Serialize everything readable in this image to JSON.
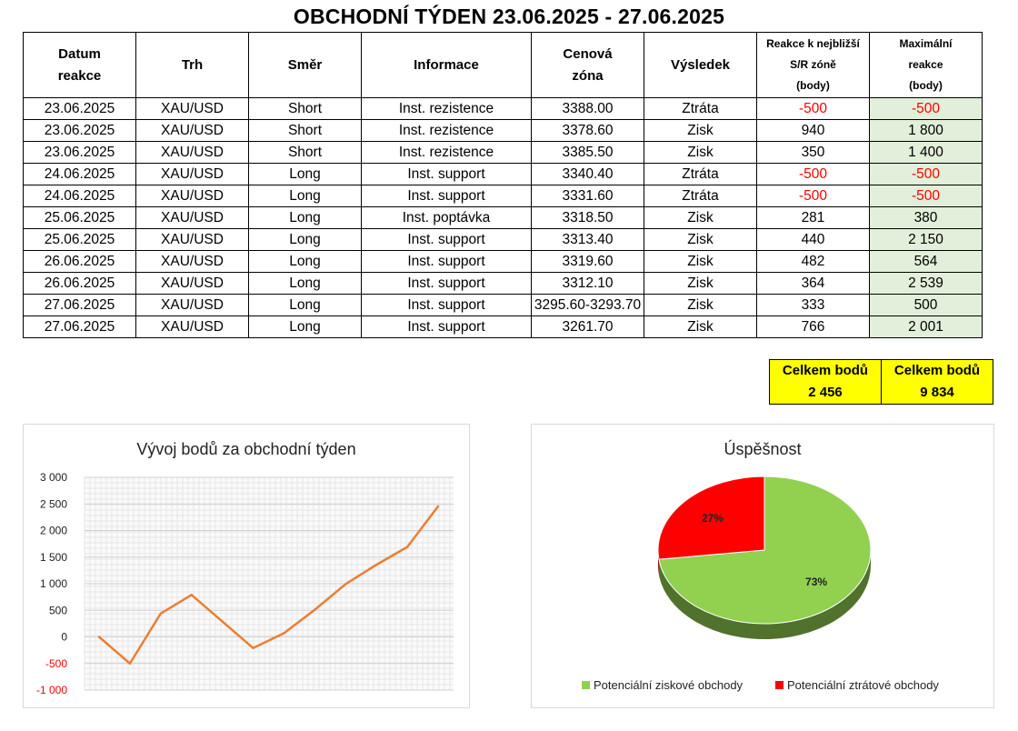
{
  "title": "OBCHODNÍ TÝDEN 23.06.2025 - 27.06.2025",
  "table": {
    "headers": [
      {
        "line1": "Datum",
        "line2": "reakce",
        "line3": ""
      },
      {
        "line1": "Trh",
        "line2": "",
        "line3": ""
      },
      {
        "line1": "Směr",
        "line2": "",
        "line3": ""
      },
      {
        "line1": "Informace",
        "line2": "",
        "line3": ""
      },
      {
        "line1": "Cenová",
        "line2": "zóna",
        "line3": ""
      },
      {
        "line1": "Výsledek",
        "line2": "",
        "line3": ""
      },
      {
        "line1": "Reakce k nejbližší",
        "line2": "S/R zóně",
        "line3": "(body)"
      },
      {
        "line1": "Maximální",
        "line2": "reakce",
        "line3": "(body)"
      }
    ],
    "rows": [
      {
        "date": "23.06.2025",
        "market": "XAU/USD",
        "direction": "Short",
        "info": "Inst. rezistence",
        "zone": "3388.00",
        "result": "Ztráta",
        "reaction": "-500",
        "max": "-500"
      },
      {
        "date": "23.06.2025",
        "market": "XAU/USD",
        "direction": "Short",
        "info": "Inst. rezistence",
        "zone": "3378.60",
        "result": "Zisk",
        "reaction": "940",
        "max": "1 800"
      },
      {
        "date": "23.06.2025",
        "market": "XAU/USD",
        "direction": "Short",
        "info": "Inst. rezistence",
        "zone": "3385.50",
        "result": "Zisk",
        "reaction": "350",
        "max": "1 400"
      },
      {
        "date": "24.06.2025",
        "market": "XAU/USD",
        "direction": "Long",
        "info": "Inst. support",
        "zone": "3340.40",
        "result": "Ztráta",
        "reaction": "-500",
        "max": "-500"
      },
      {
        "date": "24.06.2025",
        "market": "XAU/USD",
        "direction": "Long",
        "info": "Inst. support",
        "zone": "3331.60",
        "result": "Ztráta",
        "reaction": "-500",
        "max": "-500"
      },
      {
        "date": "25.06.2025",
        "market": "XAU/USD",
        "direction": "Long",
        "info": "Inst. poptávka",
        "zone": "3318.50",
        "result": "Zisk",
        "reaction": "281",
        "max": "380"
      },
      {
        "date": "25.06.2025",
        "market": "XAU/USD",
        "direction": "Long",
        "info": "Inst. support",
        "zone": "3313.40",
        "result": "Zisk",
        "reaction": "440",
        "max": "2 150"
      },
      {
        "date": "26.06.2025",
        "market": "XAU/USD",
        "direction": "Long",
        "info": "Inst. support",
        "zone": "3319.60",
        "result": "Zisk",
        "reaction": "482",
        "max": "564"
      },
      {
        "date": "26.06.2025",
        "market": "XAU/USD",
        "direction": "Long",
        "info": "Inst. support",
        "zone": "3312.10",
        "result": "Zisk",
        "reaction": "364",
        "max": "2 539"
      },
      {
        "date": "27.06.2025",
        "market": "XAU/USD",
        "direction": "Long",
        "info": "Inst. support",
        "zone": "3295.60-3293.70",
        "result": "Zisk",
        "reaction": "333",
        "max": "500"
      },
      {
        "date": "27.06.2025",
        "market": "XAU/USD",
        "direction": "Long",
        "info": "Inst. support",
        "zone": "3261.70",
        "result": "Zisk",
        "reaction": "766",
        "max": "2 001"
      }
    ]
  },
  "totals": [
    {
      "label": "Celkem bodů",
      "value": "2 456"
    },
    {
      "label": "Celkem bodů",
      "value": "9 834"
    }
  ],
  "colors": {
    "negative": "#ff0000",
    "max_column": "#e2efda",
    "totals_bg": "#ffff00",
    "line": "#ed7d31",
    "pie_profit": "#92d050",
    "pie_loss": "#ff0000"
  },
  "chart_data": [
    {
      "type": "line",
      "title": "Vývoj bodů za obchodní týden",
      "x": [
        0,
        1,
        2,
        3,
        4,
        5,
        6,
        7,
        8,
        9,
        10,
        11
      ],
      "series": [
        {
          "values": [
            0,
            -500,
            440,
            790,
            290,
            -210,
            71,
            511,
            993,
            1357,
            1690,
            2456
          ]
        }
      ],
      "ylim": [
        -1000,
        3000
      ],
      "yticks": [
        "-1 000",
        "-500",
        "0",
        "500",
        "1 000",
        "1 500",
        "2 000",
        "2 500",
        "3 000"
      ],
      "ytick_values": [
        -1000,
        -500,
        0,
        500,
        1000,
        1500,
        2000,
        2500,
        3000
      ],
      "grid": true,
      "legend": "none"
    },
    {
      "type": "pie",
      "title": "Úspěšnost",
      "slices": [
        {
          "label": "Potenciální ziskové obchody",
          "value": 73,
          "display": "73%",
          "color": "#92d050"
        },
        {
          "label": "Potenciální ztrátové obchody",
          "value": 27,
          "display": "27%",
          "color": "#ff0000"
        }
      ],
      "legend": "bottom"
    }
  ]
}
